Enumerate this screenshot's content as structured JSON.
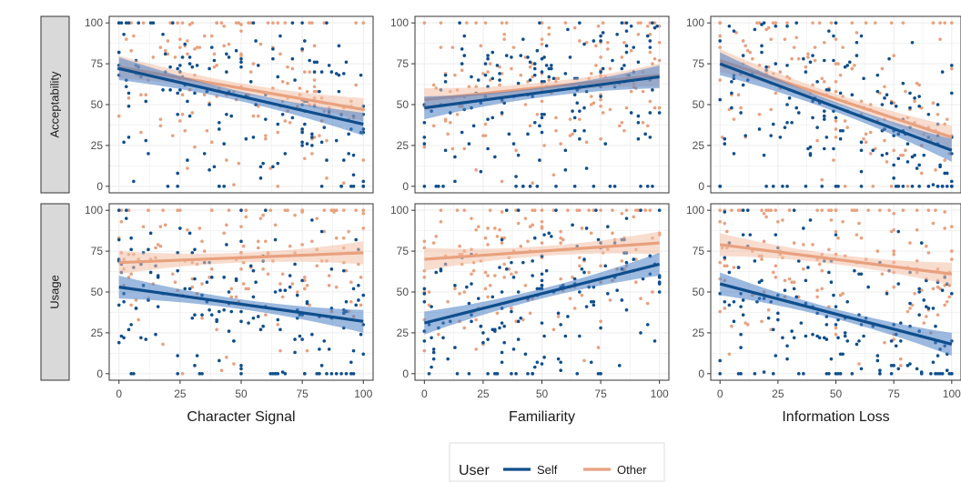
{
  "colors": {
    "self": "#0f4e8c",
    "other": "#e8a17f",
    "self_band": "#4b7fc4",
    "other_band": "#f2bfa6",
    "strip_fill": "#d9d9d9",
    "grid": "#ececec",
    "panel_border": "#333333"
  },
  "legend": {
    "title": "User",
    "entries": [
      "Self",
      "Other"
    ]
  },
  "chart_data": {
    "type": "scatter",
    "facet_rows": [
      "Acceptability",
      "Usage"
    ],
    "facet_cols": [
      "Character Signal",
      "Familiarity",
      "Information Loss"
    ],
    "xlim": [
      0,
      100
    ],
    "ylim": [
      0,
      100
    ],
    "x_ticks": [
      0,
      25,
      50,
      75,
      100
    ],
    "y_ticks": [
      0,
      25,
      50,
      75,
      100
    ],
    "grid": true,
    "legend_position": "bottom",
    "panels": [
      {
        "row": "Acceptability",
        "col": "Character Signal",
        "fit": [
          {
            "series": "Self",
            "y_at_0": 72,
            "y_at_100": 38
          },
          {
            "series": "Other",
            "y_at_0": 73,
            "y_at_100": 47
          }
        ]
      },
      {
        "row": "Acceptability",
        "col": "Familiarity",
        "fit": [
          {
            "series": "Self",
            "y_at_0": 48,
            "y_at_100": 67
          },
          {
            "series": "Other",
            "y_at_0": 53,
            "y_at_100": 68
          }
        ]
      },
      {
        "row": "Acceptability",
        "col": "Information Loss",
        "fit": [
          {
            "series": "Self",
            "y_at_0": 75,
            "y_at_100": 22
          },
          {
            "series": "Other",
            "y_at_0": 77,
            "y_at_100": 30
          }
        ]
      },
      {
        "row": "Usage",
        "col": "Character Signal",
        "fit": [
          {
            "series": "Self",
            "y_at_0": 53,
            "y_at_100": 32
          },
          {
            "series": "Other",
            "y_at_0": 68,
            "y_at_100": 74
          }
        ]
      },
      {
        "row": "Usage",
        "col": "Familiarity",
        "fit": [
          {
            "series": "Self",
            "y_at_0": 31,
            "y_at_100": 67
          },
          {
            "series": "Other",
            "y_at_0": 70,
            "y_at_100": 80
          }
        ]
      },
      {
        "row": "Usage",
        "col": "Information Loss",
        "fit": [
          {
            "series": "Self",
            "y_at_0": 55,
            "y_at_100": 18
          },
          {
            "series": "Other",
            "y_at_0": 79,
            "y_at_100": 61
          }
        ]
      }
    ]
  }
}
